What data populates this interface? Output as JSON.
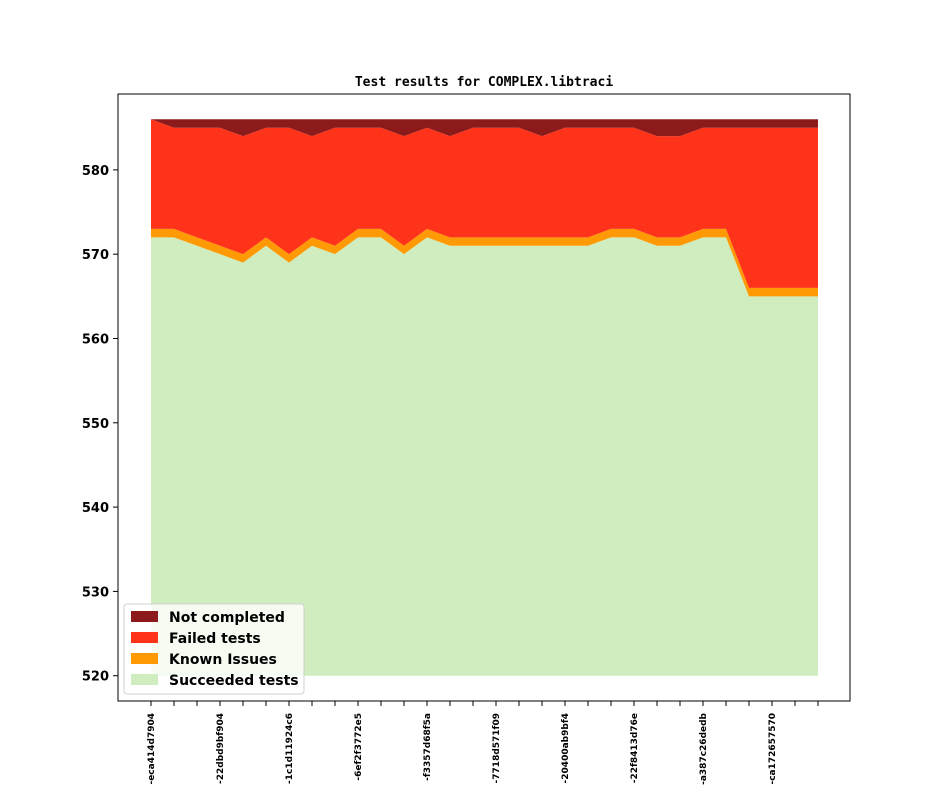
{
  "chart_data": {
    "type": "area",
    "title": "Test results for COMPLEX.libtraci",
    "xlabel": "",
    "ylabel": "",
    "ylim": [
      517,
      589
    ],
    "yticks": [
      520,
      530,
      540,
      550,
      560,
      570,
      580
    ],
    "ytick_labels": [
      "520",
      "530",
      "540",
      "550",
      "560",
      "570",
      "580"
    ],
    "baseline": 520,
    "x_tick_labels": [
      "-eca414d7904",
      "",
      "",
      "-22dbd9bf904",
      "",
      "",
      "-1c1d11924c6",
      "",
      "",
      "-6ef2f3772e5",
      "",
      "",
      "-f3357d68f5a",
      "",
      "",
      "-7718d571f09",
      "",
      "",
      "-20400ab9bf4",
      "",
      "",
      "-22f8413d76e",
      "",
      "",
      "-a387c26dedb",
      "",
      "",
      "-ca172657570",
      "",
      ""
    ],
    "series": [
      {
        "name": "Succeeded tests",
        "color": "#cfedbf",
        "values": [
          572,
          572,
          571,
          570,
          569,
          571,
          569,
          571,
          570,
          572,
          572,
          570,
          572,
          571,
          571,
          571,
          571,
          571,
          571,
          571,
          572,
          572,
          571,
          571,
          572,
          572,
          565,
          565,
          565,
          565
        ]
      },
      {
        "name": "Known Issues",
        "color": "#ff9a05",
        "values": [
          1,
          1,
          1,
          1,
          1,
          1,
          1,
          1,
          1,
          1,
          1,
          1,
          1,
          1,
          1,
          1,
          1,
          1,
          1,
          1,
          1,
          1,
          1,
          1,
          1,
          1,
          1,
          1,
          1,
          1
        ]
      },
      {
        "name": "Failed tests",
        "color": "#ff331a",
        "values": [
          13,
          12,
          13,
          14,
          14,
          13,
          15,
          12,
          14,
          12,
          12,
          13,
          12,
          12,
          13,
          13,
          13,
          12,
          13,
          13,
          12,
          12,
          12,
          12,
          12,
          12,
          19,
          19,
          19,
          19
        ]
      },
      {
        "name": "Not completed",
        "color": "#8c1a1a",
        "values": [
          0,
          1,
          1,
          1,
          2,
          1,
          1,
          2,
          1,
          1,
          1,
          2,
          1,
          2,
          1,
          1,
          1,
          2,
          1,
          1,
          1,
          1,
          2,
          2,
          1,
          1,
          1,
          1,
          1,
          1
        ]
      }
    ],
    "legend": {
      "position": "lower-left",
      "order": [
        "Not completed",
        "Failed tests",
        "Known Issues",
        "Succeeded tests"
      ]
    }
  }
}
